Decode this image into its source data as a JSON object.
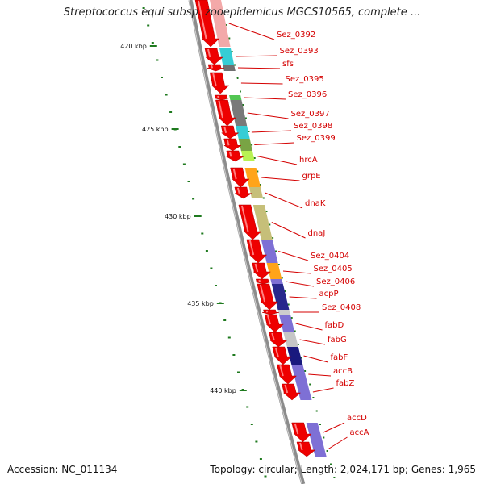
{
  "title": "Streptococcus equi subsp. zooepidemicus MGCS10565, complete ...",
  "footer": {
    "accession": "Accession: NC_011134",
    "summary": "Topology: circular; Length: 2,024,171 bp; Genes: 1,965"
  },
  "colors": {
    "backbone": "#8c8c8c",
    "gene_arrow": "#ee0000",
    "label": "#d40000",
    "ticks": "#1f7a1f"
  },
  "ticks": [
    {
      "label": "420 kbp"
    },
    {
      "label": "425 kbp"
    },
    {
      "label": "430 kbp"
    },
    {
      "label": "435 kbp"
    },
    {
      "label": "440 kbp"
    }
  ],
  "genes": [
    {
      "name": "Sez_0392",
      "band_color": "#f2a0a0"
    },
    {
      "name": "Sez_0393",
      "band_color": "#20c8d0"
    },
    {
      "name": "sfs",
      "band_color": "#606060"
    },
    {
      "name": "Sez_0395",
      "band_color": "#ffffff"
    },
    {
      "name": "Sez_0396",
      "band_color": "#40c040"
    },
    {
      "name": "Sez_0397",
      "band_color": "#6a6a6a"
    },
    {
      "name": "Sez_0398",
      "band_color": "#20c8d0"
    },
    {
      "name": "Sez_0399",
      "band_color": "#6a9a30"
    },
    {
      "name": "hrcA",
      "band_color": "#b0f040"
    },
    {
      "name": "grpE",
      "band_color": "#ff9a00"
    },
    {
      "name": "dnaK",
      "band_color": "#c0b86a"
    },
    {
      "name": "dnaJ",
      "band_color": "#c0b86a"
    },
    {
      "name": "Sez_0404",
      "band_color": "#7060d0"
    },
    {
      "name": "Sez_0405",
      "band_color": "#ff9a00"
    },
    {
      "name": "Sez_0406",
      "band_color": "#7060d0"
    },
    {
      "name": "acpP",
      "band_color": "#101080"
    },
    {
      "name": "Sez_0408",
      "band_color": "#c8c8c8"
    },
    {
      "name": "fabD",
      "band_color": "#7060d0"
    },
    {
      "name": "fabG",
      "band_color": "#c0c0c0"
    },
    {
      "name": "fabF",
      "band_color": "#000070"
    },
    {
      "name": "accB",
      "band_color": "#7060d0"
    },
    {
      "name": "fabZ",
      "band_color": "#7060d0"
    },
    {
      "name": "accD",
      "band_color": "#7060d0"
    },
    {
      "name": "accA",
      "band_color": "#7060d0"
    }
  ]
}
